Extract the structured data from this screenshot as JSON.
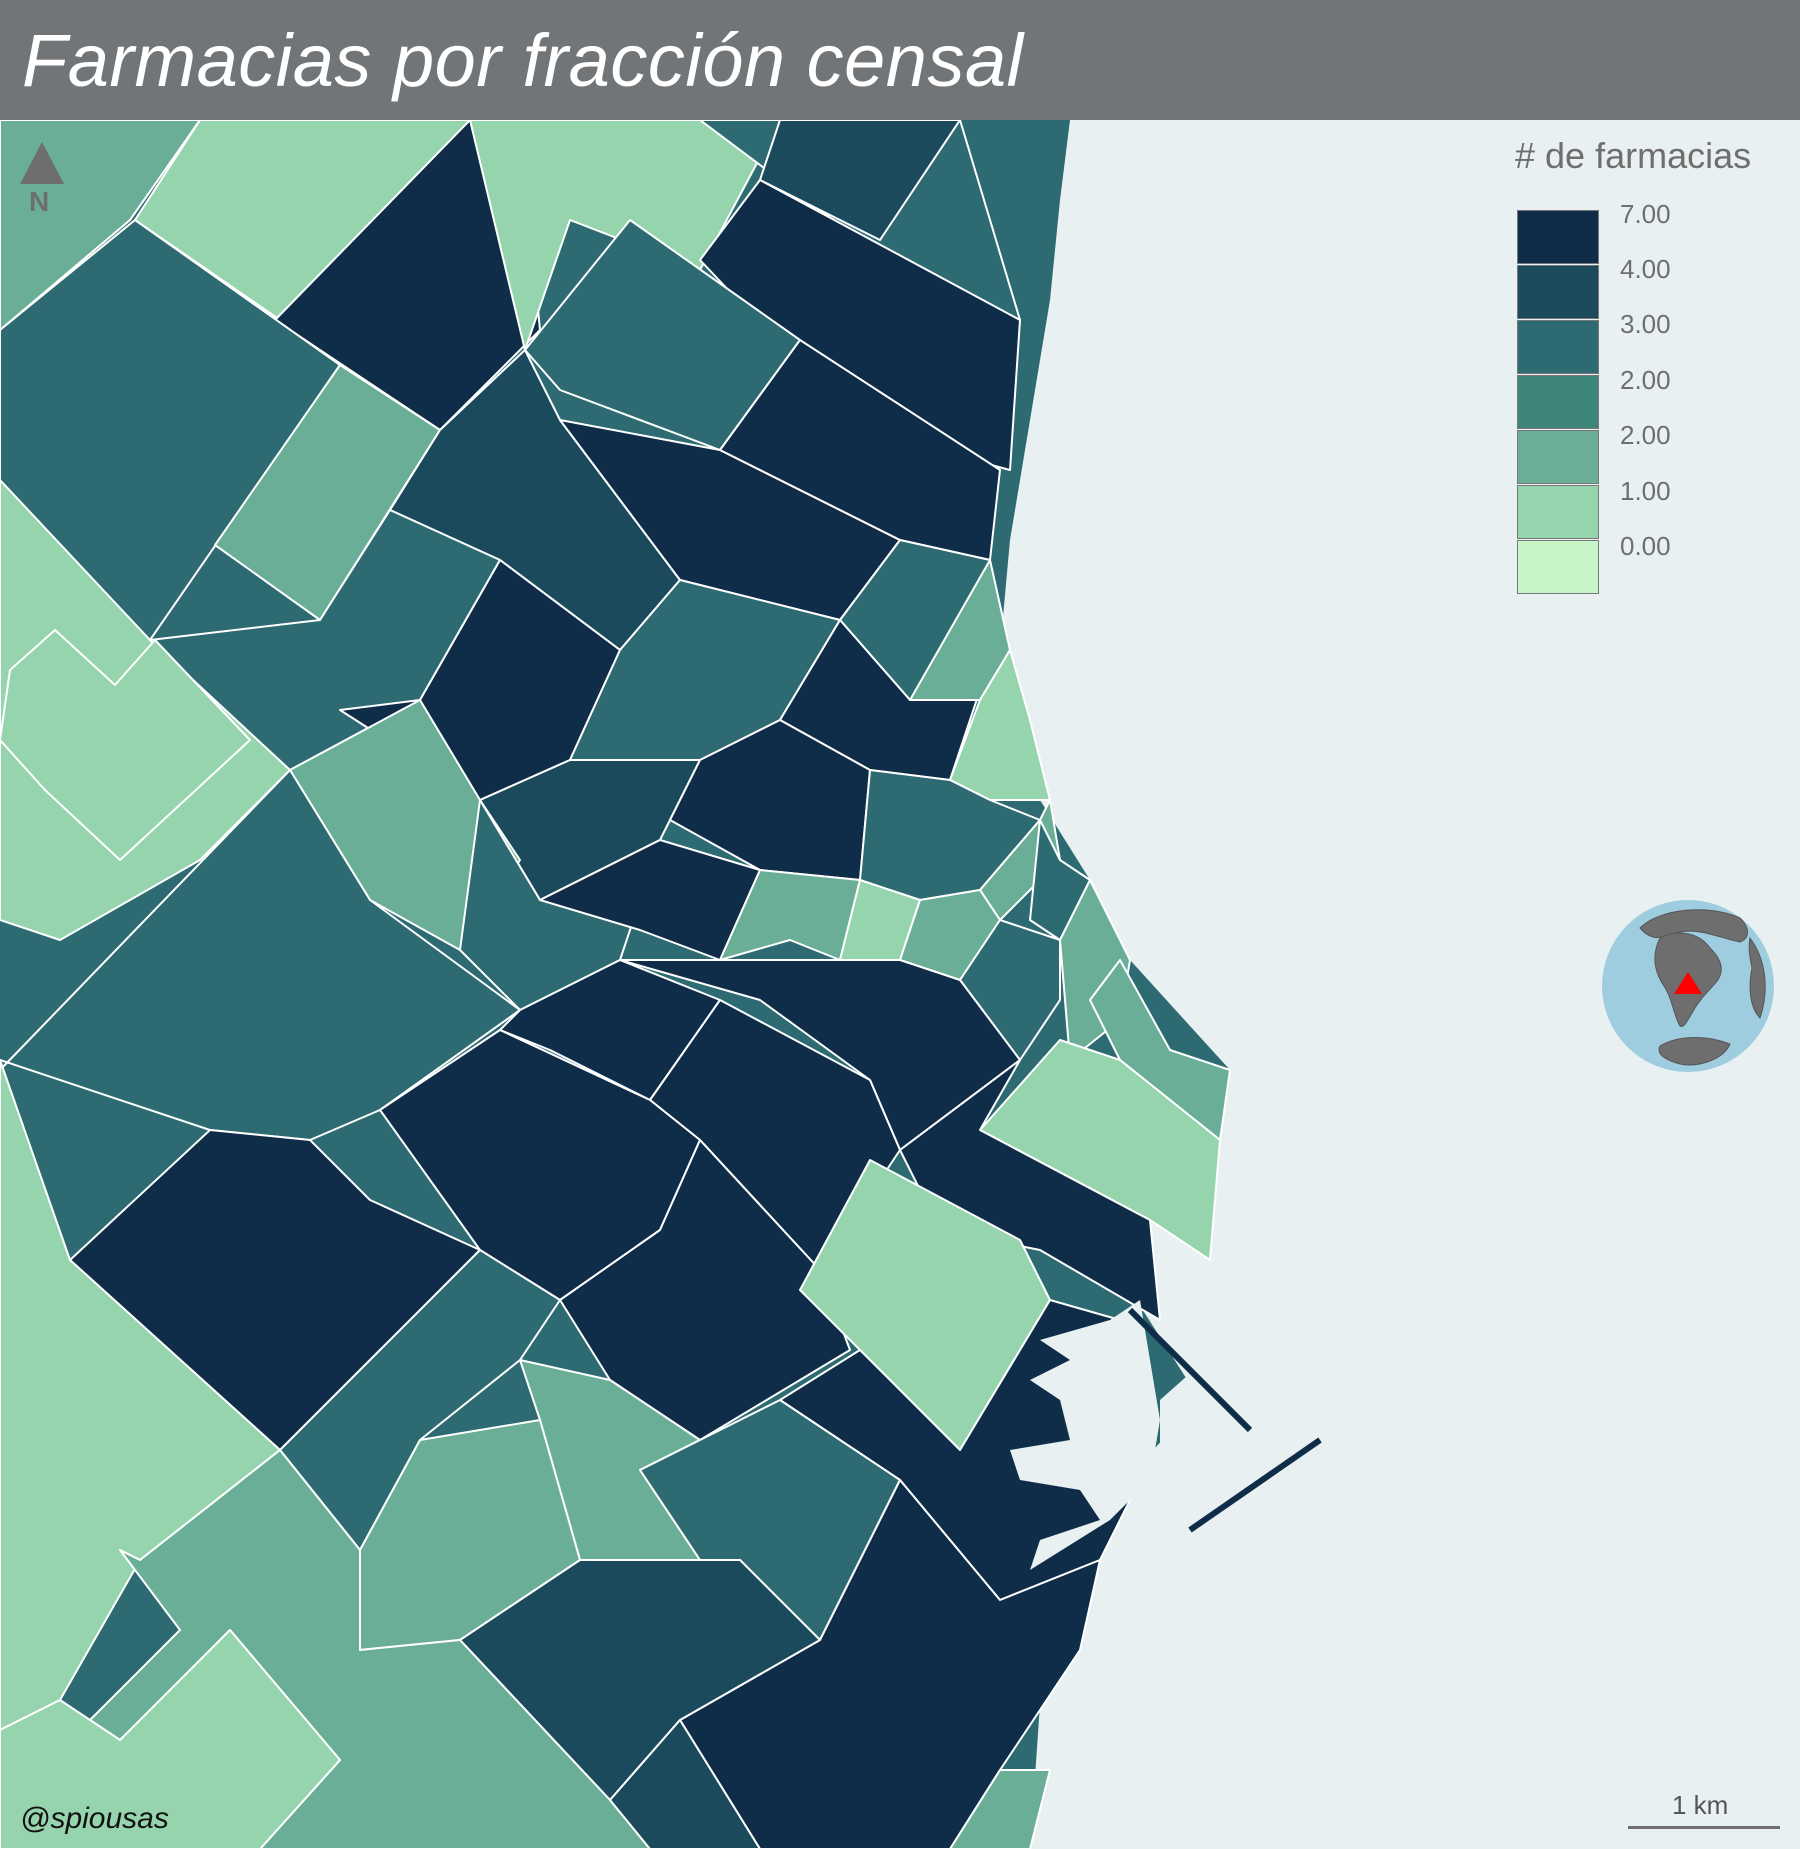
{
  "title": "Farmacias por fracción censal",
  "north_arrow": {
    "label": "N",
    "icon": "north-arrow-icon"
  },
  "legend": {
    "title": "# de farmacias",
    "items": [
      {
        "label": "7.00",
        "color": "#0f2d48"
      },
      {
        "label": "4.00",
        "color": "#1b4a5c"
      },
      {
        "label": "3.00",
        "color": "#2d6a72"
      },
      {
        "label": "2.00",
        "color": "#3d8479"
      },
      {
        "label": "2.00",
        "color": "#6aae98"
      },
      {
        "label": "1.00",
        "color": "#96d4ae"
      },
      {
        "label": "0.00",
        "color": "#c8f5c8"
      }
    ]
  },
  "colors": {
    "sea": "#e8f0f1",
    "title_bar": "#717578",
    "border": "#ffffff",
    "globe_ocean": "#9fcde0",
    "globe_land": "#6e6e6e",
    "marker": "#ff0000"
  },
  "inset_globe": {
    "icon": "globe-icon",
    "marker_icon": "location-triangle-icon"
  },
  "credit": "@spiousas",
  "scale": {
    "label": "1 km"
  }
}
